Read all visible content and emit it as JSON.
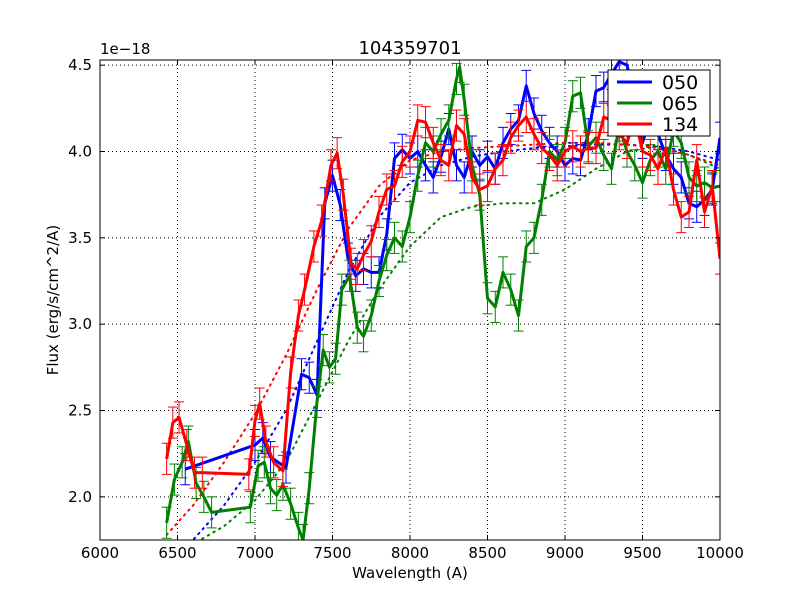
{
  "figure": {
    "title": "104359701",
    "offset_text": "1e−18",
    "xlabel": "Wavelength (A)",
    "ylabel": "Flux (erg/s/cm^2/A)"
  },
  "chart_data": {
    "type": "line",
    "title": "104359701",
    "xlabel": "Wavelength (A)",
    "ylabel": "Flux (erg/s/cm^2/A)",
    "y_scale_factor": "1e-18",
    "xlim": [
      6000,
      10000
    ],
    "ylim": [
      1.75,
      4.53
    ],
    "grid": true,
    "legend_position": "upper right",
    "x_ticks": [
      6000,
      6500,
      7000,
      7500,
      8000,
      8500,
      9000,
      9500,
      10000
    ],
    "x_tick_labels": [
      "6000",
      "6500",
      "7000",
      "7500",
      "8000",
      "8500",
      "9000",
      "9500",
      "10000"
    ],
    "y_ticks": [
      2.0,
      2.5,
      3.0,
      3.5,
      4.0,
      4.5
    ],
    "y_tick_labels": [
      "2.0",
      "2.5",
      "3.0",
      "3.5",
      "4.0",
      "4.5"
    ],
    "series": [
      {
        "name": "050",
        "color": "#0000ff",
        "x": [
          6550,
          7000,
          7050,
          7100,
          7200,
          7300,
          7350,
          7400,
          7450,
          7500,
          7550,
          7600,
          7650,
          7700,
          7750,
          7800,
          7850,
          7900,
          7950,
          8000,
          8050,
          8100,
          8150,
          8200,
          8250,
          8300,
          8350,
          8400,
          8450,
          8500,
          8550,
          8600,
          8650,
          8700,
          8750,
          8800,
          8850,
          8900,
          8950,
          9000,
          9050,
          9100,
          9150,
          9200,
          9250,
          9300,
          9350,
          9400,
          9450,
          9500,
          9550,
          9600,
          9650,
          9700,
          9750,
          9800,
          9850,
          9900,
          9950,
          10000
        ],
        "y": [
          2.16,
          2.3,
          2.34,
          2.23,
          2.17,
          2.71,
          2.69,
          2.59,
          3.7,
          3.86,
          3.69,
          3.38,
          3.28,
          3.32,
          3.3,
          3.3,
          3.52,
          3.96,
          4.01,
          3.96,
          4.0,
          3.92,
          3.85,
          3.97,
          4.13,
          3.92,
          3.85,
          4.0,
          3.92,
          3.97,
          3.9,
          4.05,
          4.13,
          4.18,
          4.38,
          4.22,
          4.12,
          4.05,
          4.0,
          3.92,
          3.96,
          3.95,
          4.1,
          4.35,
          4.37,
          4.45,
          4.52,
          4.5,
          4.3,
          4.05,
          4.2,
          4.1,
          3.98,
          3.9,
          3.85,
          3.7,
          3.68,
          3.72,
          3.78,
          4.08
        ]
      },
      {
        "name": "065",
        "color": "#008000",
        "x": [
          6430,
          6480,
          6530,
          6570,
          6620,
          6670,
          6720,
          6970,
          7020,
          7060,
          7100,
          7140,
          7180,
          7230,
          7280,
          7310,
          7350,
          7400,
          7440,
          7480,
          7520,
          7560,
          7610,
          7660,
          7700,
          7750,
          7800,
          7850,
          7900,
          7950,
          8000,
          8050,
          8100,
          8150,
          8200,
          8250,
          8300,
          8320,
          8350,
          8400,
          8450,
          8500,
          8550,
          8600,
          8650,
          8700,
          8750,
          8800,
          8850,
          8900,
          8950,
          9000,
          9050,
          9100,
          9150,
          9200,
          9250,
          9300,
          9350,
          9400,
          9450,
          9500,
          9550,
          9600,
          9650,
          9700,
          9750,
          9800,
          9850,
          9900,
          9950,
          10000
        ],
        "y": [
          1.85,
          2.1,
          2.2,
          2.32,
          2.08,
          2.0,
          1.91,
          1.94,
          2.18,
          2.2,
          2.05,
          2.01,
          2.07,
          1.96,
          1.82,
          1.75,
          2.05,
          2.55,
          2.85,
          2.75,
          2.8,
          3.2,
          3.28,
          2.98,
          2.93,
          3.05,
          3.25,
          3.4,
          3.5,
          3.45,
          3.62,
          3.86,
          4.05,
          4.0,
          4.1,
          4.18,
          4.42,
          4.49,
          4.3,
          3.92,
          3.75,
          3.15,
          3.1,
          3.3,
          3.2,
          3.05,
          3.45,
          3.5,
          3.72,
          4.0,
          3.95,
          4.05,
          4.32,
          4.34,
          4.03,
          4.08,
          3.98,
          3.9,
          4.15,
          4.0,
          3.92,
          3.82,
          3.95,
          4.0,
          3.9,
          4.12,
          4.05,
          3.85,
          3.8,
          3.82,
          3.79,
          3.8
        ]
      },
      {
        "name": "134",
        "color": "#ff0000",
        "x": [
          6430,
          6470,
          6510,
          6560,
          6610,
          6660,
          6960,
          7000,
          7030,
          7070,
          7120,
          7180,
          7230,
          7280,
          7320,
          7380,
          7430,
          7490,
          7530,
          7570,
          7620,
          7660,
          7700,
          7750,
          7800,
          7850,
          7900,
          7950,
          8000,
          8050,
          8100,
          8150,
          8200,
          8250,
          8300,
          8350,
          8400,
          8450,
          8500,
          8550,
          8600,
          8650,
          8700,
          8750,
          8800,
          8850,
          8900,
          8950,
          9000,
          9050,
          9100,
          9150,
          9200,
          9250,
          9300,
          9350,
          9400,
          9450,
          9500,
          9550,
          9600,
          9650,
          9700,
          9750,
          9800,
          9850,
          9900,
          9950,
          10000
        ],
        "y": [
          2.22,
          2.43,
          2.46,
          2.3,
          2.14,
          2.14,
          2.13,
          2.44,
          2.54,
          2.32,
          2.2,
          2.15,
          2.72,
          3.05,
          3.2,
          3.45,
          3.6,
          3.92,
          3.99,
          3.75,
          3.35,
          3.32,
          3.4,
          3.48,
          3.65,
          3.78,
          3.8,
          3.94,
          4.0,
          4.18,
          4.17,
          4.05,
          3.95,
          3.92,
          4.15,
          4.1,
          3.85,
          3.78,
          3.8,
          3.9,
          3.95,
          4.08,
          4.15,
          4.2,
          4.1,
          4.02,
          3.98,
          3.92,
          4.0,
          4.03,
          4.0,
          4.02,
          4.02,
          4.2,
          4.18,
          4.1,
          4.05,
          4.2,
          4.0,
          3.98,
          3.9,
          4.02,
          3.78,
          3.62,
          3.65,
          3.95,
          3.65,
          3.8,
          3.38
        ]
      }
    ],
    "fits": [
      {
        "name": "050 fit",
        "color": "#0000ff",
        "style": "dotted",
        "x": [
          6550,
          6800,
          7000,
          7200,
          7400,
          7600,
          7800,
          8000,
          8200,
          8400,
          8600,
          8800,
          9000,
          9200,
          9400,
          9600,
          9800,
          10000
        ],
        "y": [
          1.7,
          1.95,
          2.2,
          2.5,
          2.9,
          3.3,
          3.62,
          3.82,
          3.92,
          3.97,
          4.0,
          4.02,
          4.03,
          4.04,
          4.04,
          4.03,
          4.0,
          3.95
        ]
      },
      {
        "name": "065 fit",
        "color": "#008000",
        "style": "dotted",
        "x": [
          6550,
          6800,
          7000,
          7200,
          7400,
          7600,
          7800,
          8000,
          8200,
          8400,
          8600,
          8800,
          9000,
          9200,
          9400,
          9600,
          9800,
          10000
        ],
        "y": [
          1.7,
          1.83,
          1.98,
          2.2,
          2.55,
          2.9,
          3.2,
          3.45,
          3.62,
          3.68,
          3.7,
          3.7,
          3.78,
          3.9,
          4.0,
          4.03,
          3.98,
          3.9
        ]
      },
      {
        "name": "134 fit",
        "color": "#ff0000",
        "style": "dotted",
        "x": [
          6430,
          6600,
          6800,
          7000,
          7200,
          7400,
          7600,
          7800,
          8000,
          8200,
          8400,
          8600,
          8800,
          9000,
          9200,
          9400,
          9600,
          9800,
          10000
        ],
        "y": [
          1.78,
          1.95,
          2.2,
          2.48,
          2.82,
          3.2,
          3.55,
          3.8,
          3.95,
          4.0,
          4.02,
          4.03,
          4.04,
          4.05,
          4.05,
          4.04,
          4.02,
          3.98,
          3.92
        ]
      }
    ],
    "error_bar_halfwidth": 0.09
  }
}
